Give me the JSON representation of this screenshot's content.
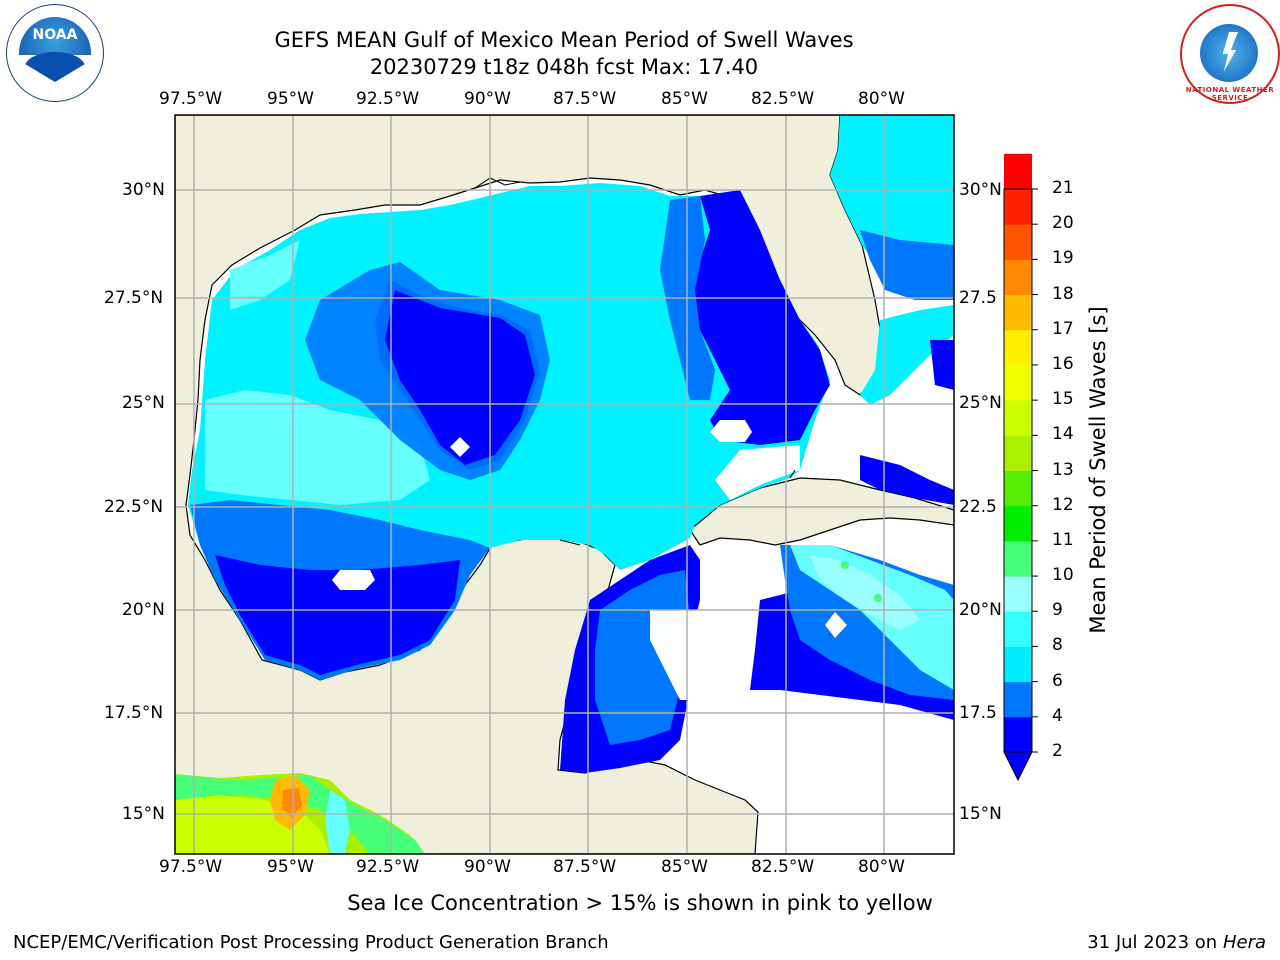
{
  "title": {
    "line1": "GEFS MEAN Gulf of Mexico Mean Period of Swell Waves",
    "line2": "20230729 t18z 048h fcst   Max: 17.40"
  },
  "axes": {
    "lon_labels": [
      "97.5°W",
      "95°W",
      "92.5°W",
      "90°W",
      "87.5°W",
      "85°W",
      "82.5°W",
      "80°W"
    ],
    "lat_labels_left": [
      "30°N",
      "27.5°N",
      "25°N",
      "22.5°N",
      "20°N",
      "17.5°N",
      "15°N"
    ],
    "lat_labels_right": [
      "30°N",
      "27.5",
      "25°N",
      "22.5",
      "20°N",
      "17.5",
      "15°N"
    ]
  },
  "colorbar": {
    "label": "Mean Period of Swell Waves [s]",
    "ticks": [
      "2",
      "4",
      "6",
      "8",
      "9",
      "10",
      "11",
      "12",
      "13",
      "14",
      "15",
      "16",
      "17",
      "18",
      "19",
      "20",
      "21"
    ],
    "colors": [
      "#0000ff",
      "#0077ff",
      "#00eeff",
      "#33ffff",
      "#99ffff",
      "#44ff77",
      "#00ee00",
      "#55ee00",
      "#aaee00",
      "#ccff00",
      "#eeff00",
      "#ffee00",
      "#ffbb00",
      "#ff8800",
      "#ff5500",
      "#ff2200",
      "#ff0000"
    ]
  },
  "logos": {
    "noaa": "NOAA",
    "nws": "NATIONAL WEATHER SERVICE"
  },
  "footer": {
    "sea_ice_note": "Sea Ice Concentration > 15% is shown in pink to yellow",
    "producer": "NCEP/EMC/Verification Post Processing Product Generation Branch",
    "date": "31 Jul 2023 on ",
    "machine": "Hera"
  },
  "colors": {
    "land": "#efefdc",
    "grid": "#b0b0b0"
  }
}
